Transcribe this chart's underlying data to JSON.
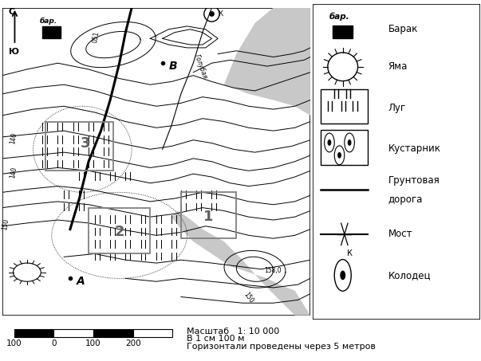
{
  "bg_color": "#ffffff",
  "scale_text1": "Масштаб   1: 10 000",
  "scale_text2": "В 1 см 100 м",
  "scale_text3": "Горизонтали проведены через 5 метров",
  "label_barak": "бар.",
  "label_barak2": "Барак",
  "label_yama": "Яма",
  "label_lug": "Луг",
  "label_kust": "Кустарник",
  "label_road": "Грунтовая",
  "label_road2": "дорога",
  "label_bridge": "Мост",
  "label_well": "Колодец",
  "label_K": "К",
  "north_s": "С",
  "north_yu": "Ю",
  "label_A": "А",
  "label_B": "В",
  "label_goluby": "Голубая",
  "label_140a": "140",
  "label_140b": "140",
  "label_150a": "150",
  "label_150b": "150",
  "label_150c": "051",
  "label_158": "158,0"
}
